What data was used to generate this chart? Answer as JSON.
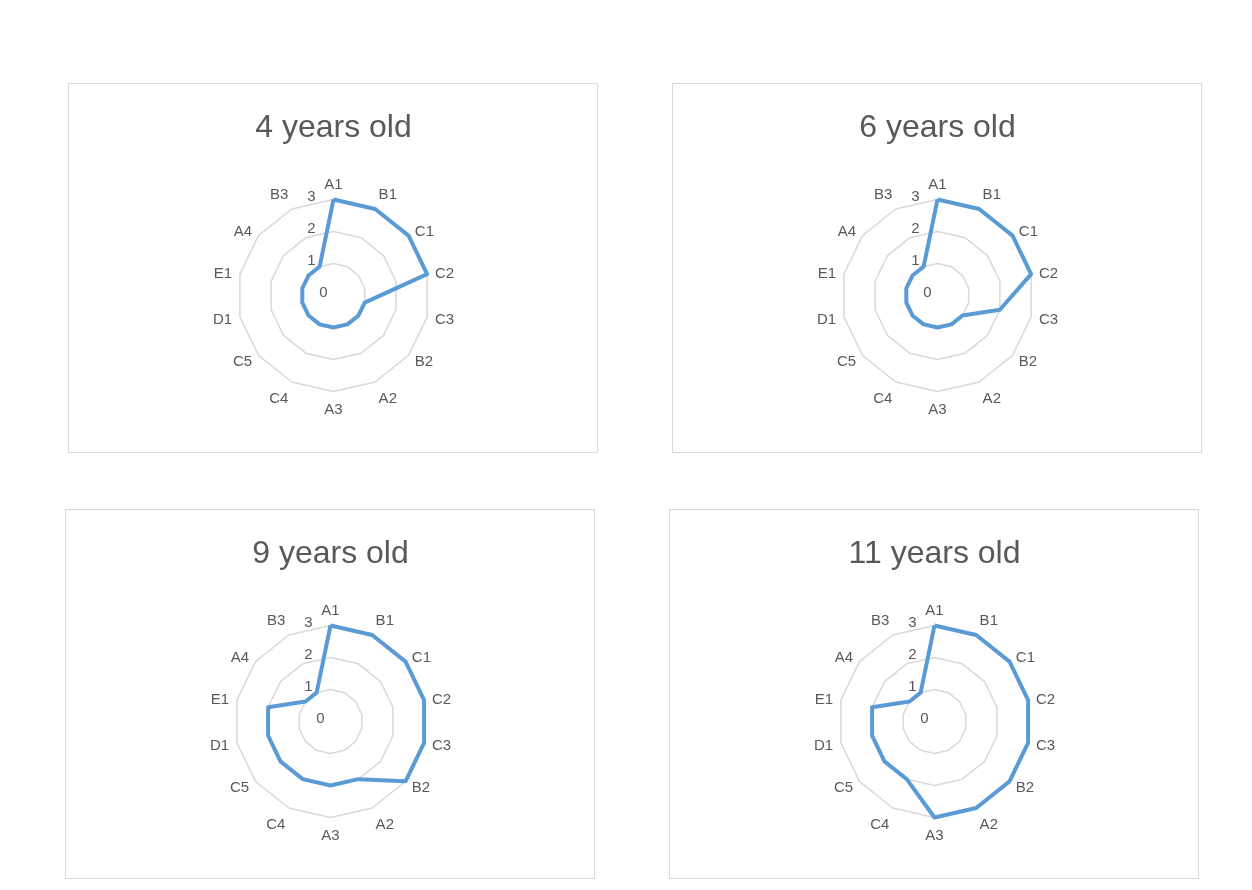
{
  "chart_data": [
    {
      "type": "radar",
      "title": "4 years old",
      "categories": [
        "A1",
        "B1",
        "C1",
        "C2",
        "C3",
        "B2",
        "A2",
        "A3",
        "C4",
        "C5",
        "D1",
        "E1",
        "A4",
        "B3"
      ],
      "ylim": [
        0,
        3
      ],
      "yticks": [
        0,
        1,
        2,
        3
      ],
      "grid": true,
      "series": [
        {
          "color": "#5b9bd5",
          "values": [
            3,
            3,
            3,
            3,
            1,
            1,
            1,
            1,
            1,
            1,
            1,
            1,
            1,
            1
          ]
        }
      ]
    },
    {
      "type": "radar",
      "title": "6 years old",
      "categories": [
        "A1",
        "B1",
        "C1",
        "C2",
        "C3",
        "B2",
        "A2",
        "A3",
        "C4",
        "C5",
        "D1",
        "E1",
        "A4",
        "B3"
      ],
      "ylim": [
        0,
        3
      ],
      "yticks": [
        0,
        1,
        2,
        3
      ],
      "grid": true,
      "series": [
        {
          "color": "#5b9bd5",
          "values": [
            3,
            3,
            3,
            3,
            2,
            1,
            1,
            1,
            1,
            1,
            1,
            1,
            1,
            1
          ]
        }
      ]
    },
    {
      "type": "radar",
      "title": "9 years old",
      "categories": [
        "A1",
        "B1",
        "C1",
        "C2",
        "C3",
        "B2",
        "A2",
        "A3",
        "C4",
        "C5",
        "D1",
        "E1",
        "A4",
        "B3"
      ],
      "ylim": [
        0,
        3
      ],
      "yticks": [
        0,
        1,
        2,
        3
      ],
      "grid": true,
      "series": [
        {
          "color": "#5b9bd5",
          "values": [
            3,
            3,
            3,
            3,
            3,
            3,
            2,
            2,
            2,
            2,
            2,
            2,
            1,
            1
          ]
        }
      ]
    },
    {
      "type": "radar",
      "title": "11 years old",
      "categories": [
        "A1",
        "B1",
        "C1",
        "C2",
        "C3",
        "B2",
        "A2",
        "A3",
        "C4",
        "C5",
        "D1",
        "E1",
        "A4",
        "B3"
      ],
      "ylim": [
        0,
        3
      ],
      "yticks": [
        0,
        1,
        2,
        3
      ],
      "grid": true,
      "series": [
        {
          "color": "#5b9bd5",
          "values": [
            3,
            3,
            3,
            3,
            3,
            3,
            3,
            3,
            2,
            2,
            2,
            2,
            1,
            1
          ]
        }
      ]
    }
  ]
}
